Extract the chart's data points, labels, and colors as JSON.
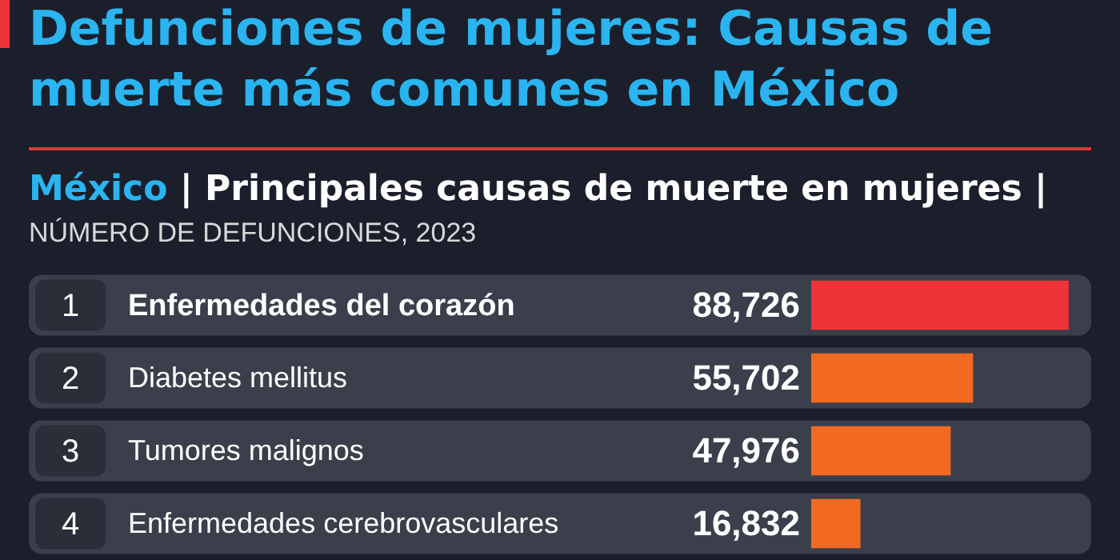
{
  "chart_data": {
    "type": "bar",
    "orientation": "horizontal",
    "title": "Defunciones de mujeres: Causas de muerte más comunes en México",
    "subtitle": "México | Principales causas de muerte en mujeres |\nNÚMERO DE DEFUNCIONES, 2023",
    "categories": [
      "Enfermedades del corazón",
      "Diabetes mellitus",
      "Tumores malignos",
      "Enfermedades cerebrovasculares"
    ],
    "values": [
      88726,
      55702,
      47976,
      16832
    ],
    "colors": [
      "#ee3338",
      "#f26a22",
      "#f26a22",
      "#f26a22"
    ],
    "annotations": [
      "1",
      "2",
      "3",
      "4"
    ],
    "value_labels": [
      "88,726",
      "55,702",
      "47,976",
      "16,832"
    ],
    "legend": false
  }
}
